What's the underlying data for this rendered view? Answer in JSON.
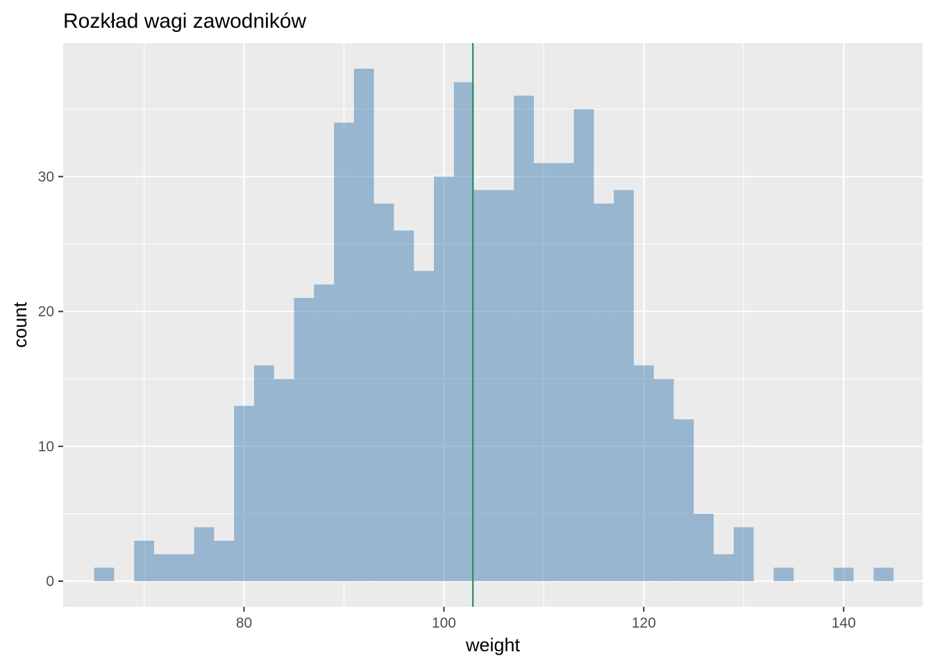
{
  "chart_data": {
    "type": "bar",
    "title": "Rozkład wagi zawodników",
    "xlabel": "weight",
    "ylabel": "count",
    "xlim": [
      61.9,
      147.9
    ],
    "ylim": [
      -1.9,
      39.9
    ],
    "x_ticks": [
      80,
      100,
      120,
      140
    ],
    "y_ticks": [
      0,
      10,
      20,
      30
    ],
    "x_tick_labels": [
      "80",
      "100",
      "120",
      "140"
    ],
    "y_tick_labels": [
      "0",
      "10",
      "20",
      "30"
    ],
    "grid": true,
    "legend": "none",
    "bin_width": 2,
    "bins": [
      {
        "x0": 65,
        "x1": 67,
        "count": 1
      },
      {
        "x0": 67,
        "x1": 69,
        "count": 0
      },
      {
        "x0": 69,
        "x1": 71,
        "count": 3
      },
      {
        "x0": 71,
        "x1": 73,
        "count": 2
      },
      {
        "x0": 73,
        "x1": 75,
        "count": 2
      },
      {
        "x0": 75,
        "x1": 77,
        "count": 4
      },
      {
        "x0": 77,
        "x1": 79,
        "count": 3
      },
      {
        "x0": 79,
        "x1": 81,
        "count": 13
      },
      {
        "x0": 81,
        "x1": 83,
        "count": 16
      },
      {
        "x0": 83,
        "x1": 85,
        "count": 15
      },
      {
        "x0": 85,
        "x1": 87,
        "count": 21
      },
      {
        "x0": 87,
        "x1": 89,
        "count": 22
      },
      {
        "x0": 89,
        "x1": 91,
        "count": 34
      },
      {
        "x0": 91,
        "x1": 93,
        "count": 38
      },
      {
        "x0": 93,
        "x1": 95,
        "count": 28
      },
      {
        "x0": 95,
        "x1": 97,
        "count": 26
      },
      {
        "x0": 97,
        "x1": 99,
        "count": 23
      },
      {
        "x0": 99,
        "x1": 101,
        "count": 30
      },
      {
        "x0": 101,
        "x1": 103,
        "count": 37
      },
      {
        "x0": 103,
        "x1": 105,
        "count": 29
      },
      {
        "x0": 105,
        "x1": 107,
        "count": 29
      },
      {
        "x0": 107,
        "x1": 109,
        "count": 36
      },
      {
        "x0": 109,
        "x1": 111,
        "count": 31
      },
      {
        "x0": 111,
        "x1": 113,
        "count": 31
      },
      {
        "x0": 113,
        "x1": 115,
        "count": 35
      },
      {
        "x0": 115,
        "x1": 117,
        "count": 28
      },
      {
        "x0": 117,
        "x1": 119,
        "count": 29
      },
      {
        "x0": 119,
        "x1": 121,
        "count": 16
      },
      {
        "x0": 121,
        "x1": 123,
        "count": 15
      },
      {
        "x0": 123,
        "x1": 125,
        "count": 12
      },
      {
        "x0": 125,
        "x1": 127,
        "count": 5
      },
      {
        "x0": 127,
        "x1": 129,
        "count": 2
      },
      {
        "x0": 129,
        "x1": 131,
        "count": 4
      },
      {
        "x0": 131,
        "x1": 133,
        "count": 0
      },
      {
        "x0": 133,
        "x1": 135,
        "count": 1
      },
      {
        "x0": 135,
        "x1": 137,
        "count": 0
      },
      {
        "x0": 137,
        "x1": 139,
        "count": 0
      },
      {
        "x0": 139,
        "x1": 141,
        "count": 1
      },
      {
        "x0": 141,
        "x1": 143,
        "count": 0
      },
      {
        "x0": 143,
        "x1": 145,
        "count": 1
      }
    ],
    "mean_line": {
      "x": 102.9,
      "color": "#2e8b57"
    },
    "colors": {
      "bar_fill": "#4682b4",
      "bar_opacity": 0.5,
      "panel_background": "#ebebeb",
      "grid": "#ffffff",
      "tick_label": "#4d4d4d"
    }
  }
}
